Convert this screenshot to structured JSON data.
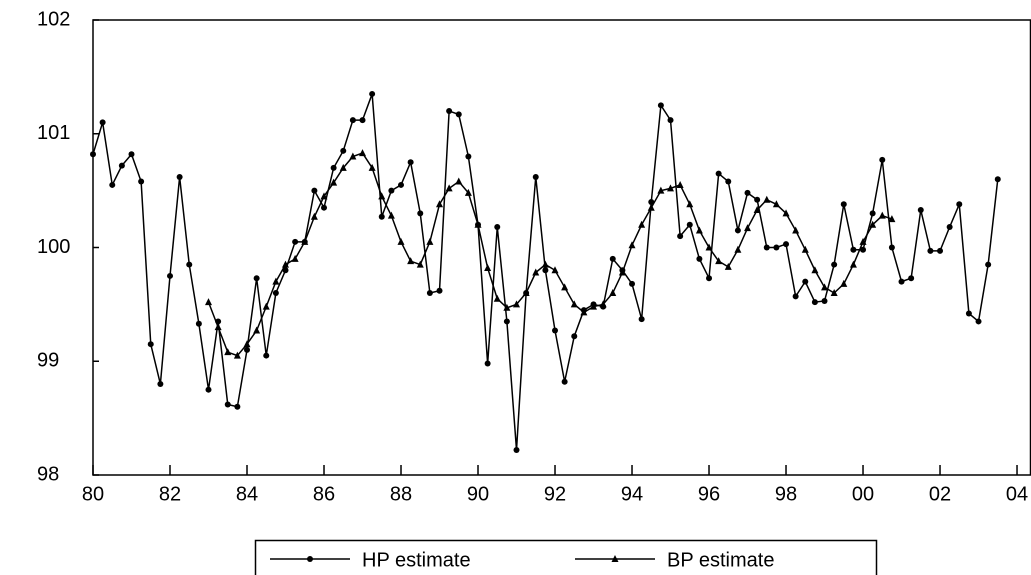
{
  "chart_data": {
    "type": "line",
    "x": [
      1980,
      1980.25,
      1980.5,
      1980.75,
      1981,
      1981.25,
      1981.5,
      1981.75,
      1982,
      1982.25,
      1982.5,
      1982.75,
      1983,
      1983.25,
      1983.5,
      1983.75,
      1984,
      1984.25,
      1984.5,
      1984.75,
      1985,
      1985.25,
      1985.5,
      1985.75,
      1986,
      1986.25,
      1986.5,
      1986.75,
      1987,
      1987.25,
      1987.5,
      1987.75,
      1988,
      1988.25,
      1988.5,
      1988.75,
      1989,
      1989.25,
      1989.5,
      1989.75,
      1990,
      1990.25,
      1990.5,
      1990.75,
      1991,
      1991.25,
      1991.5,
      1991.75,
      1992,
      1992.25,
      1992.5,
      1992.75,
      1993,
      1993.25,
      1993.5,
      1993.75,
      1994,
      1994.25,
      1994.5,
      1994.75,
      1995,
      1995.25,
      1995.5,
      1995.75,
      1996,
      1996.25,
      1996.5,
      1996.75,
      1997,
      1997.25,
      1997.5,
      1997.75,
      1998,
      1998.25,
      1998.5,
      1998.75,
      1999,
      1999.25,
      1999.5,
      1999.75,
      2000,
      2000.25,
      2000.5,
      2000.75,
      2001,
      2001.25,
      2001.5,
      2001.75,
      2002,
      2002.25,
      2002.5,
      2002.75,
      2003,
      2003.25,
      2003.5
    ],
    "series": [
      {
        "name": "HP estimate",
        "color": "#000000",
        "marker": "circle",
        "values": [
          100.82,
          101.1,
          100.55,
          100.72,
          100.82,
          100.58,
          99.15,
          98.8,
          99.75,
          100.62,
          99.85,
          99.33,
          98.75,
          99.35,
          98.62,
          98.6,
          99.1,
          99.73,
          99.05,
          99.6,
          99.8,
          100.05,
          100.05,
          100.5,
          100.35,
          100.7,
          100.85,
          101.12,
          101.12,
          101.35,
          100.27,
          100.5,
          100.55,
          100.75,
          100.3,
          99.6,
          99.62,
          101.2,
          101.17,
          100.8,
          100.2,
          98.98,
          100.18,
          99.35,
          98.22,
          99.6,
          100.62,
          99.8,
          99.27,
          98.82,
          99.22,
          99.45,
          99.5,
          99.48,
          99.9,
          99.8,
          99.68,
          99.37,
          100.4,
          101.25,
          101.12,
          100.1,
          100.2,
          99.9,
          99.73,
          100.65,
          100.58,
          100.15,
          100.48,
          100.42,
          100.0,
          100.0,
          100.03,
          99.57,
          99.7,
          99.52,
          99.53,
          99.85,
          100.38,
          99.98,
          99.98,
          100.3,
          100.77,
          100.0,
          99.7,
          99.73,
          100.33,
          99.97,
          99.97,
          100.18,
          100.38,
          99.42,
          99.35,
          99.85,
          100.6
        ]
      },
      {
        "name": "BP estimate",
        "color": "#000000",
        "marker": "triangle",
        "values": [
          null,
          null,
          null,
          null,
          null,
          null,
          null,
          null,
          null,
          null,
          null,
          null,
          99.52,
          99.3,
          99.08,
          99.05,
          99.15,
          99.27,
          99.48,
          99.7,
          99.85,
          99.9,
          100.05,
          100.27,
          100.45,
          100.57,
          100.7,
          100.8,
          100.83,
          100.7,
          100.45,
          100.28,
          100.05,
          99.88,
          99.85,
          100.05,
          100.38,
          100.52,
          100.58,
          100.48,
          100.2,
          99.82,
          99.55,
          99.47,
          99.5,
          99.6,
          99.78,
          99.85,
          99.8,
          99.65,
          99.5,
          99.43,
          99.48,
          99.5,
          99.6,
          99.78,
          100.02,
          100.2,
          100.35,
          100.5,
          100.52,
          100.55,
          100.38,
          100.15,
          100.0,
          99.88,
          99.83,
          99.98,
          100.17,
          100.33,
          100.42,
          100.38,
          100.3,
          100.15,
          99.98,
          99.8,
          99.65,
          99.6,
          99.68,
          99.85,
          100.05,
          100.2,
          100.28,
          100.25,
          null,
          null,
          null,
          null,
          null,
          null,
          null,
          null,
          null,
          null,
          null
        ]
      }
    ],
    "xlim": [
      1980,
      2004.35
    ],
    "xticks": [
      {
        "value": 1980,
        "label": "80"
      },
      {
        "value": 1982,
        "label": "82"
      },
      {
        "value": 1984,
        "label": "84"
      },
      {
        "value": 1986,
        "label": "86"
      },
      {
        "value": 1988,
        "label": "88"
      },
      {
        "value": 1990,
        "label": "90"
      },
      {
        "value": 1992,
        "label": "92"
      },
      {
        "value": 1994,
        "label": "94"
      },
      {
        "value": 1996,
        "label": "96"
      },
      {
        "value": 1998,
        "label": "98"
      },
      {
        "value": 2000,
        "label": "00"
      },
      {
        "value": 2002,
        "label": "02"
      },
      {
        "value": 2004,
        "label": "04"
      }
    ],
    "ylim": [
      98,
      102
    ],
    "yticks": [
      98,
      99,
      100,
      101,
      102
    ],
    "legend": "bottom"
  }
}
